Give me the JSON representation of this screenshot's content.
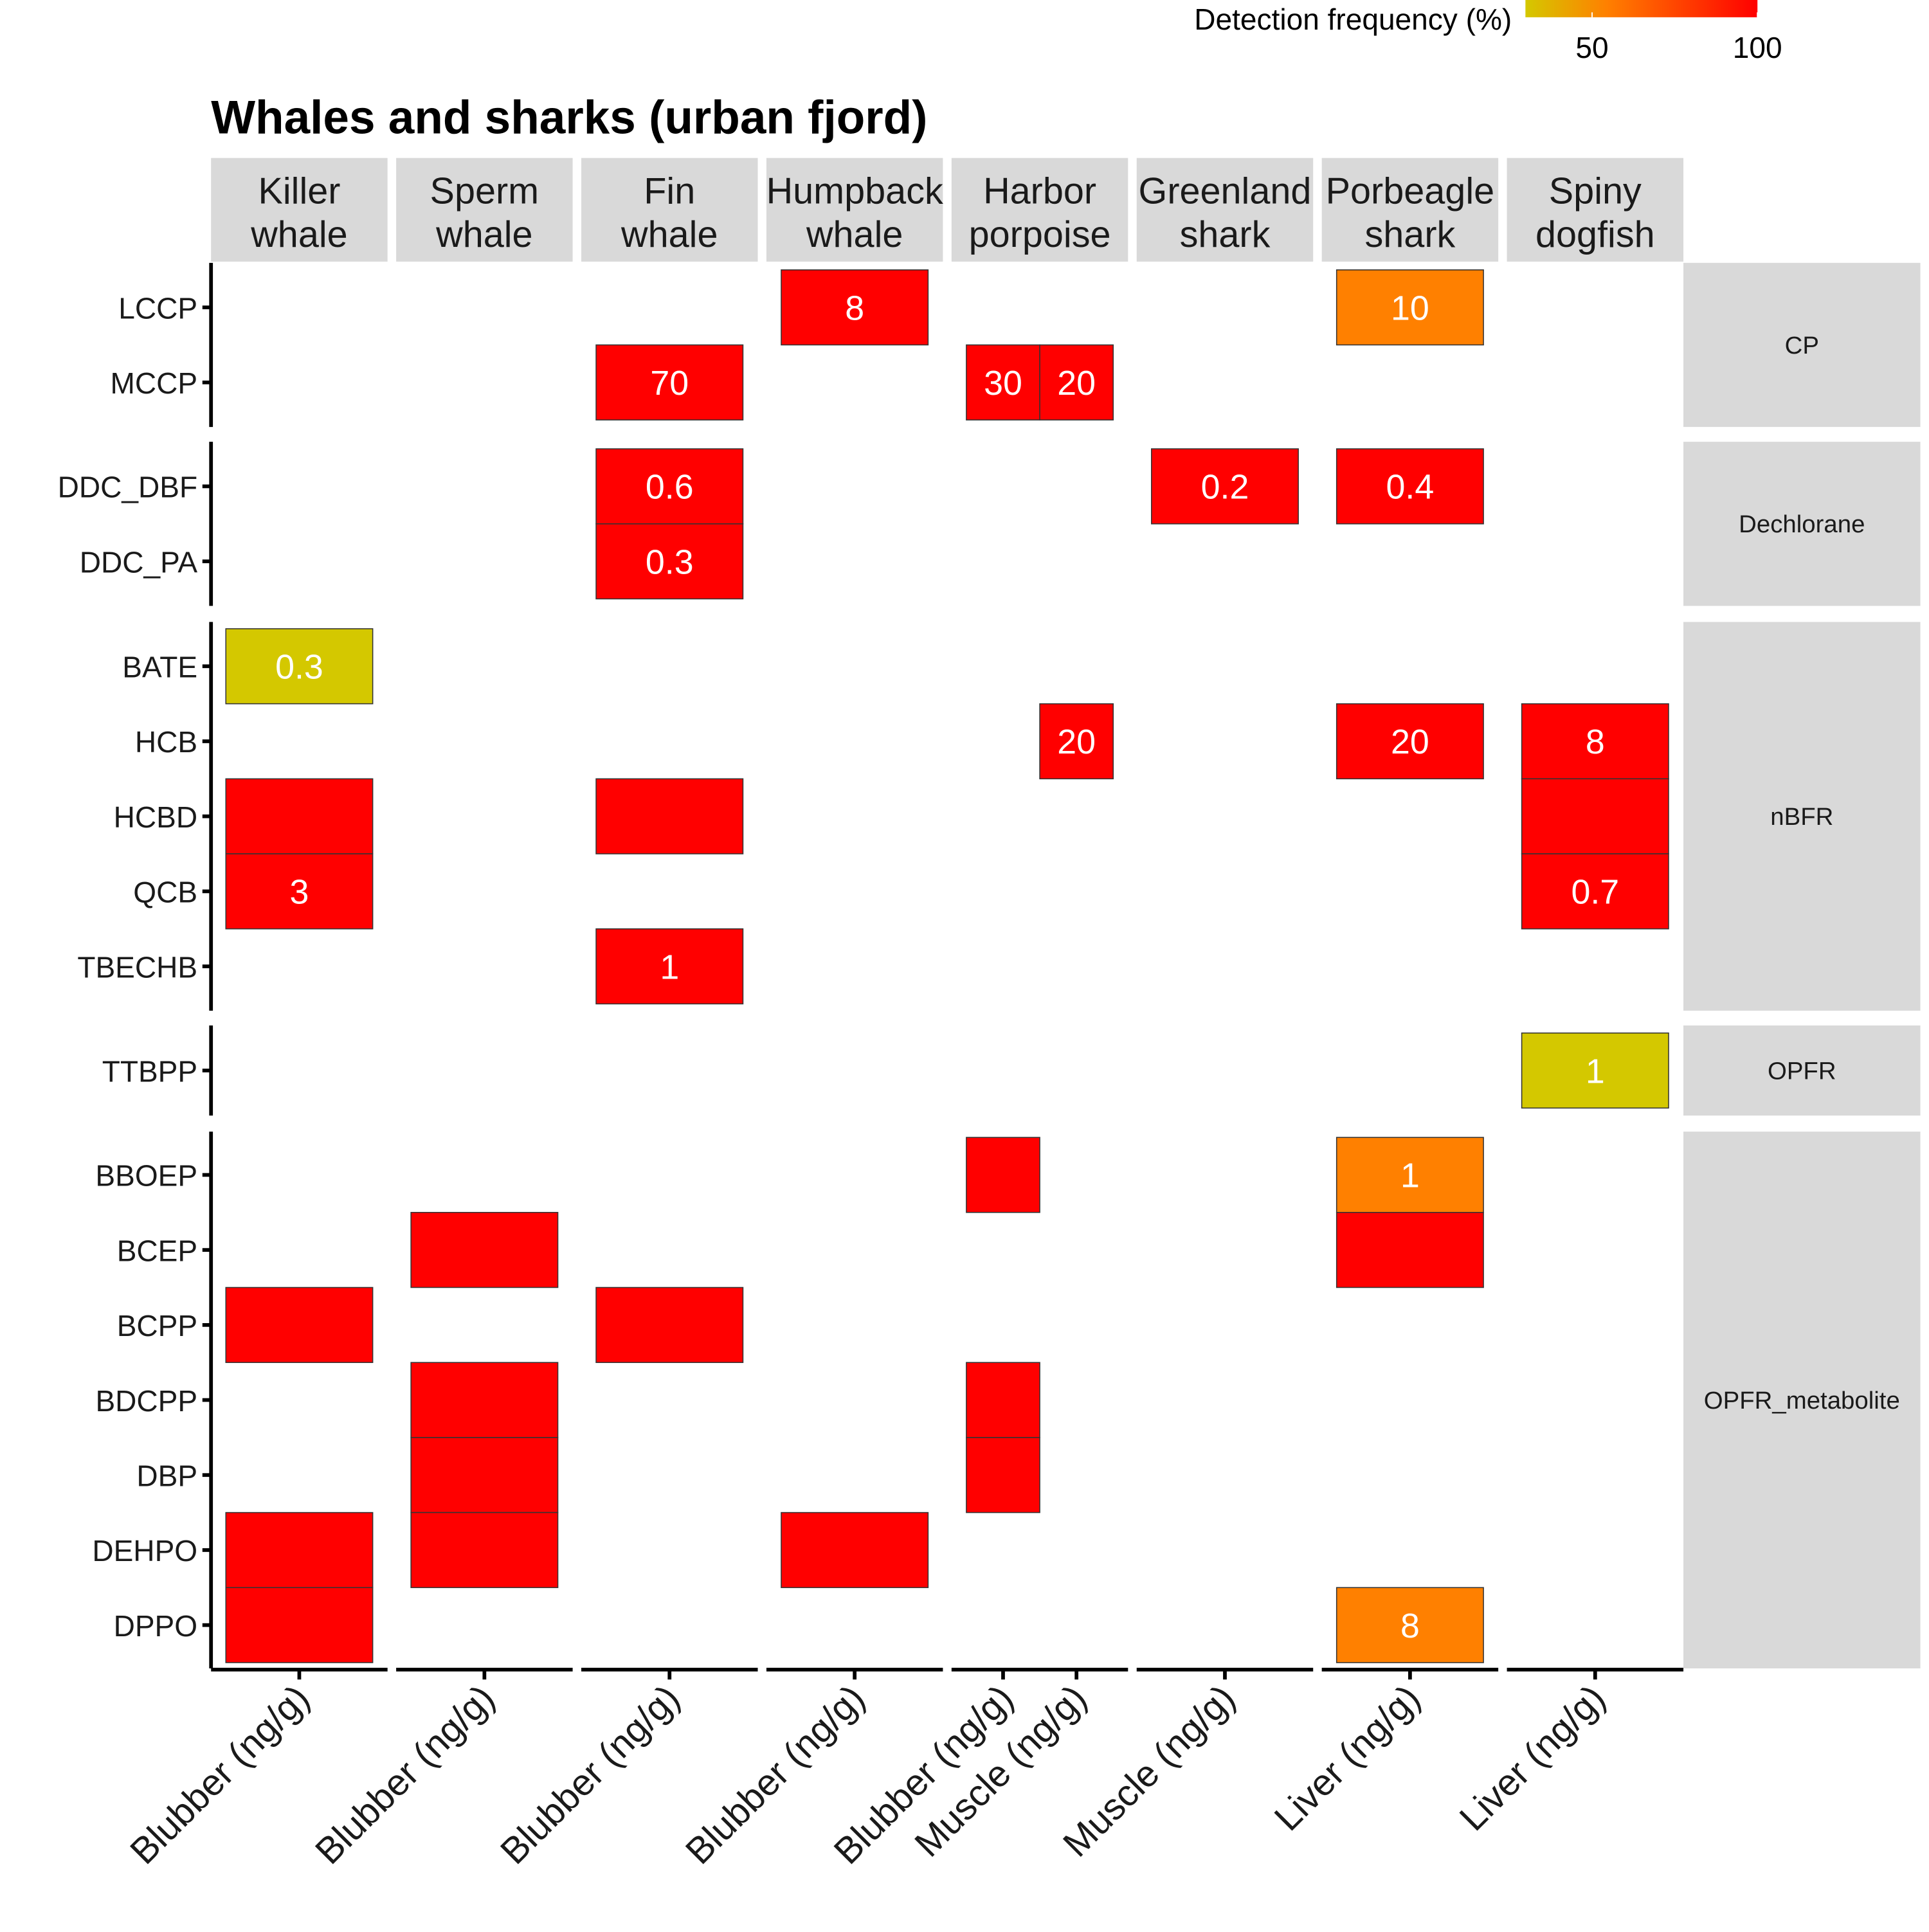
{
  "chart_data": {
    "type": "heatmap",
    "title": "Whales and sharks (urban fjord)",
    "legend": {
      "title": "Detection frequency (%)",
      "ticks": [
        "50",
        "100"
      ],
      "colors": {
        "low": "#d4c800",
        "mid": "#ff8000",
        "high": "#ff0000"
      },
      "placement": "top-right"
    },
    "colors": {
      "panel_strip": "#d9d9d9",
      "tile_border": "#333333",
      "tile_label": "#ffffff",
      "axis": "#000000"
    },
    "facets": [
      {
        "name": "Killer\nwhale",
        "columns": [
          "Blubber (ng/g)"
        ]
      },
      {
        "name": "Sperm\nwhale",
        "columns": [
          "Blubber (ng/g)"
        ]
      },
      {
        "name": "Fin\nwhale",
        "columns": [
          "Blubber (ng/g)"
        ]
      },
      {
        "name": "Humpback\nwhale",
        "columns": [
          "Blubber (ng/g)"
        ]
      },
      {
        "name": "Harbor\nporpoise",
        "columns": [
          "Blubber (ng/g)",
          "Muscle (ng/g)"
        ]
      },
      {
        "name": "Greenland\nshark",
        "columns": [
          "Muscle (ng/g)"
        ]
      },
      {
        "name": "Porbeagle\nshark",
        "columns": [
          "Liver (ng/g)"
        ]
      },
      {
        "name": "Spiny\ndogfish",
        "columns": [
          "Liver (ng/g)"
        ]
      }
    ],
    "groups": [
      {
        "name": "CP",
        "rows": [
          "LCCP",
          "MCCP"
        ]
      },
      {
        "name": "Dechlorane",
        "rows": [
          "DDC_DBF",
          "DDC_PA"
        ]
      },
      {
        "name": "nBFR",
        "rows": [
          "BATE",
          "HCB",
          "HCBD",
          "QCB",
          "TBECHB"
        ]
      },
      {
        "name": "OPFR",
        "rows": [
          "TTBPP"
        ]
      },
      {
        "name": "OPFR_metabolite",
        "rows": [
          "BBOEP",
          "BCEP",
          "BCPP",
          "BDCPP",
          "DBP",
          "DEHPO",
          "DPPO"
        ]
      }
    ],
    "cells": [
      {
        "facet": 3,
        "col": 0,
        "row": "LCCP",
        "freq": 100,
        "label": "8"
      },
      {
        "facet": 6,
        "col": 0,
        "row": "LCCP",
        "freq": 75,
        "label": "10"
      },
      {
        "facet": 2,
        "col": 0,
        "row": "MCCP",
        "freq": 100,
        "label": "70"
      },
      {
        "facet": 4,
        "col": 0,
        "row": "MCCP",
        "freq": 100,
        "label": "30"
      },
      {
        "facet": 4,
        "col": 1,
        "row": "MCCP",
        "freq": 100,
        "label": "20"
      },
      {
        "facet": 2,
        "col": 0,
        "row": "DDC_DBF",
        "freq": 100,
        "label": "0.6"
      },
      {
        "facet": 5,
        "col": 0,
        "row": "DDC_DBF",
        "freq": 100,
        "label": "0.2"
      },
      {
        "facet": 6,
        "col": 0,
        "row": "DDC_DBF",
        "freq": 100,
        "label": "0.4"
      },
      {
        "facet": 2,
        "col": 0,
        "row": "DDC_PA",
        "freq": 100,
        "label": "0.3"
      },
      {
        "facet": 0,
        "col": 0,
        "row": "BATE",
        "freq": 33,
        "label": "0.3"
      },
      {
        "facet": 4,
        "col": 1,
        "row": "HCB",
        "freq": 100,
        "label": "20"
      },
      {
        "facet": 6,
        "col": 0,
        "row": "HCB",
        "freq": 100,
        "label": "20"
      },
      {
        "facet": 7,
        "col": 0,
        "row": "HCB",
        "freq": 100,
        "label": "8"
      },
      {
        "facet": 0,
        "col": 0,
        "row": "HCBD",
        "freq": 100,
        "label": ""
      },
      {
        "facet": 2,
        "col": 0,
        "row": "HCBD",
        "freq": 100,
        "label": ""
      },
      {
        "facet": 7,
        "col": 0,
        "row": "HCBD",
        "freq": 100,
        "label": ""
      },
      {
        "facet": 0,
        "col": 0,
        "row": "QCB",
        "freq": 100,
        "label": "3"
      },
      {
        "facet": 7,
        "col": 0,
        "row": "QCB",
        "freq": 100,
        "label": "0.7"
      },
      {
        "facet": 2,
        "col": 0,
        "row": "TBECHB",
        "freq": 100,
        "label": "1"
      },
      {
        "facet": 7,
        "col": 0,
        "row": "TTBPP",
        "freq": 33,
        "label": "1"
      },
      {
        "facet": 4,
        "col": 0,
        "row": "BBOEP",
        "freq": 100,
        "label": ""
      },
      {
        "facet": 6,
        "col": 0,
        "row": "BBOEP",
        "freq": 75,
        "label": "1"
      },
      {
        "facet": 1,
        "col": 0,
        "row": "BCEP",
        "freq": 100,
        "label": ""
      },
      {
        "facet": 6,
        "col": 0,
        "row": "BCEP",
        "freq": 100,
        "label": ""
      },
      {
        "facet": 0,
        "col": 0,
        "row": "BCPP",
        "freq": 100,
        "label": ""
      },
      {
        "facet": 2,
        "col": 0,
        "row": "BCPP",
        "freq": 100,
        "label": ""
      },
      {
        "facet": 1,
        "col": 0,
        "row": "BDCPP",
        "freq": 100,
        "label": ""
      },
      {
        "facet": 4,
        "col": 0,
        "row": "BDCPP",
        "freq": 100,
        "label": ""
      },
      {
        "facet": 1,
        "col": 0,
        "row": "DBP",
        "freq": 100,
        "label": ""
      },
      {
        "facet": 4,
        "col": 0,
        "row": "DBP",
        "freq": 100,
        "label": ""
      },
      {
        "facet": 0,
        "col": 0,
        "row": "DEHPO",
        "freq": 100,
        "label": ""
      },
      {
        "facet": 1,
        "col": 0,
        "row": "DEHPO",
        "freq": 100,
        "label": ""
      },
      {
        "facet": 3,
        "col": 0,
        "row": "DEHPO",
        "freq": 100,
        "label": ""
      },
      {
        "facet": 0,
        "col": 0,
        "row": "DPPO",
        "freq": 100,
        "label": ""
      },
      {
        "facet": 6,
        "col": 0,
        "row": "DPPO",
        "freq": 75,
        "label": "8"
      }
    ]
  }
}
